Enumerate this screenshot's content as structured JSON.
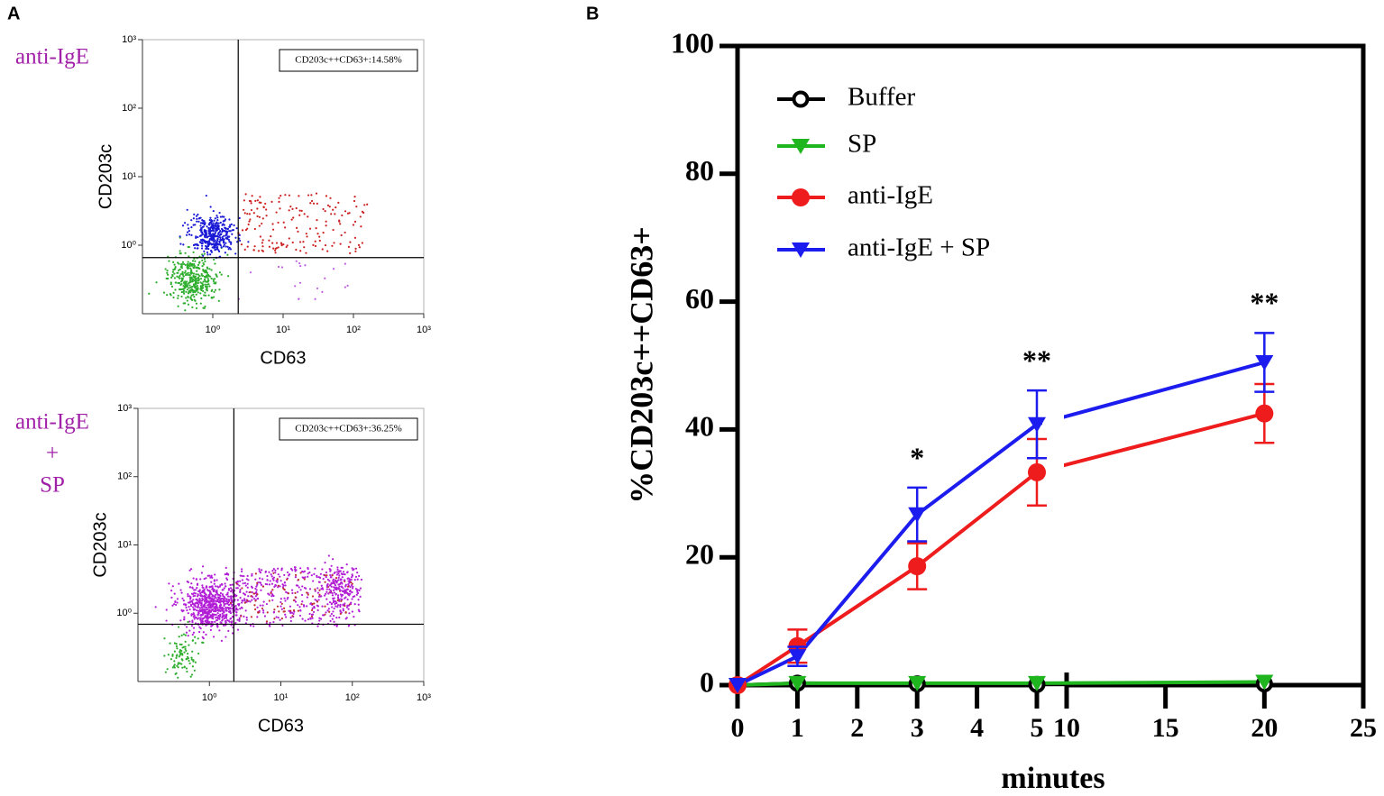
{
  "chart_data": [
    {
      "type": "flow-cytometry",
      "panel_label": "A",
      "sample_label": [
        "anti-IgE"
      ],
      "xlabel": "CD63",
      "ylabel": "CD203c",
      "annotation": "CD203c++CD63+:14.58%",
      "log_scale": true,
      "xlim": [
        0.1,
        1000
      ],
      "ylim": [
        0.1,
        1000
      ],
      "xticks": [
        {
          "value": 1,
          "label": "10⁰"
        },
        {
          "value": 10,
          "label": "10¹"
        },
        {
          "value": 100,
          "label": "10²"
        },
        {
          "value": 1000,
          "label": "10³"
        }
      ],
      "yticks": [
        {
          "value": 1,
          "label": "10⁰"
        },
        {
          "value": 10,
          "label": "10¹"
        },
        {
          "value": 100,
          "label": "10²"
        },
        {
          "value": 1000,
          "label": "10³"
        }
      ],
      "gate": {
        "x": 2.3,
        "y": 0.66
      }
    },
    {
      "type": "flow-cytometry",
      "sample_label": [
        "anti-IgE",
        "+",
        "SP"
      ],
      "xlabel": "CD63",
      "ylabel": "CD203c",
      "annotation": "CD203c++CD63+:36.25%",
      "log_scale": true,
      "xlim": [
        0.1,
        1000
      ],
      "ylim": [
        0.1,
        1000
      ],
      "xticks": [
        {
          "value": 1,
          "label": "10⁰"
        },
        {
          "value": 10,
          "label": "10¹"
        },
        {
          "value": 100,
          "label": "10²"
        },
        {
          "value": 1000,
          "label": "10³"
        }
      ],
      "yticks": [
        {
          "value": 1,
          "label": "10⁰"
        },
        {
          "value": 10,
          "label": "10¹"
        },
        {
          "value": 100,
          "label": "10²"
        },
        {
          "value": 1000,
          "label": "10³"
        }
      ],
      "gate": {
        "x": 2.2,
        "y": 0.69
      }
    },
    {
      "type": "line",
      "panel_label": "B",
      "xlabel": "minutes",
      "ylabel": "%CD203c++CD63+",
      "x": [
        0,
        1,
        3,
        5,
        20
      ],
      "xlim": [
        0,
        25
      ],
      "x_break": [
        5,
        10
      ],
      "xticks": [
        0,
        1,
        2,
        3,
        4,
        5,
        10,
        15,
        20,
        25
      ],
      "ylim": [
        0,
        100
      ],
      "yticks": [
        0,
        20,
        40,
        60,
        80,
        100
      ],
      "series": [
        {
          "name": "Buffer",
          "color": "#000000",
          "marker": "open-circle",
          "values": [
            0,
            0.3,
            0.2,
            0.1,
            0.2
          ]
        },
        {
          "name": "SP",
          "color": "#1fb51f",
          "marker": "down-triangle",
          "values": [
            0,
            0.3,
            0.3,
            0.3,
            0.5
          ]
        },
        {
          "name": "anti-IgE",
          "color": "#ee1c1c",
          "marker": "circle",
          "values": [
            0,
            6.1,
            18.6,
            33.3,
            42.5
          ],
          "errors": [
            null,
            2.6,
            3.6,
            5.2,
            4.6
          ]
        },
        {
          "name": "anti-IgE + SP",
          "color": "#1c1cee",
          "marker": "down-triangle",
          "values": [
            0,
            4.5,
            26.7,
            40.8,
            50.5
          ],
          "errors": [
            null,
            1.5,
            4.2,
            5.3,
            4.6
          ]
        }
      ],
      "annotations": [
        {
          "text": "*",
          "x": 3
        },
        {
          "text": "**",
          "x": 5
        },
        {
          "text": "**",
          "x": 20
        }
      ]
    }
  ]
}
